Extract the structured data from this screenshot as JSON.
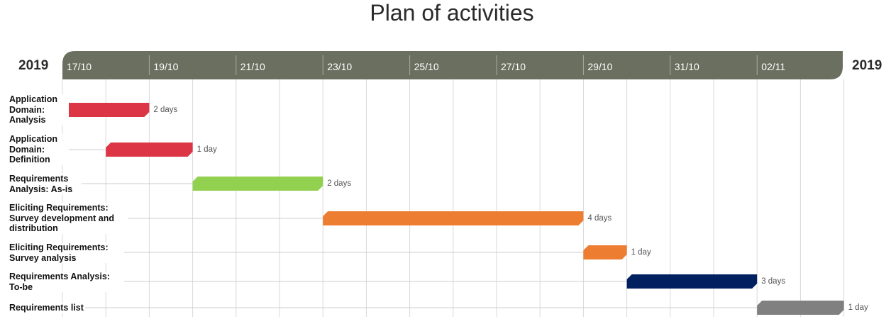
{
  "chart_data": {
    "type": "gantt",
    "title": "Plan of activities",
    "year_start_label": "2019",
    "year_end_label": "2019",
    "x_ticks": [
      "17/10",
      "19/10",
      "21/10",
      "23/10",
      "25/10",
      "27/10",
      "29/10",
      "31/10",
      "02/11"
    ],
    "tasks": [
      {
        "name": "Application Domain: Analysis",
        "start": "2019-10-17",
        "end": "2019-10-19",
        "duration_label": "2 days",
        "color": "#dc3545"
      },
      {
        "name": "Application Domain: Definition",
        "start": "2019-10-18",
        "end": "2019-10-20",
        "duration_label": "1 day",
        "color": "#dc3545"
      },
      {
        "name": "Requirements Analysis: As-is",
        "start": "2019-10-20",
        "end": "2019-10-23",
        "duration_label": "2 days",
        "color": "#92d050"
      },
      {
        "name": "Eliciting Requirements: Survey development and distribution",
        "start": "2019-10-23",
        "end": "2019-10-29",
        "duration_label": "4 days",
        "color": "#ed7d31"
      },
      {
        "name": "Eliciting Requirements: Survey analysis",
        "start": "2019-10-29",
        "end": "2019-10-30",
        "duration_label": "1 day",
        "color": "#ed7d31"
      },
      {
        "name": "Requirements Analysis: To-be",
        "start": "2019-10-30",
        "end": "2019-11-02",
        "duration_label": "3 days",
        "color": "#002060"
      },
      {
        "name": "Requirements list",
        "start": "2019-11-02",
        "end": "2019-11-04",
        "duration_label": "1 day",
        "color": "#808080"
      }
    ],
    "header_color": "#6b6f5f"
  }
}
